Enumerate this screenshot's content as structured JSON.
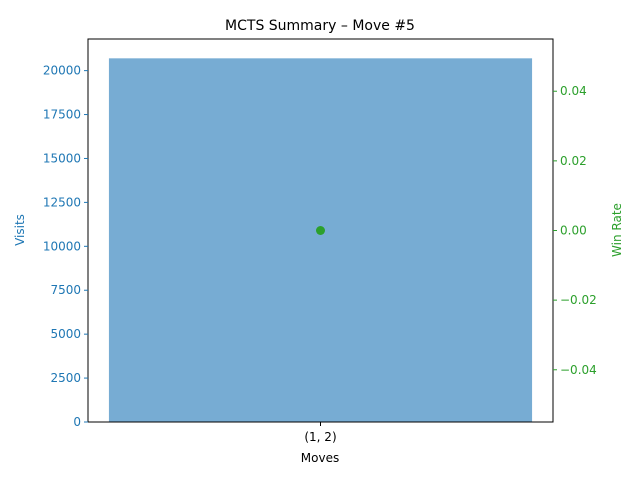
{
  "chart_data": {
    "type": "bar",
    "title": "MCTS Summary – Move #5",
    "xlabel": "Moves",
    "categories": [
      "(1, 2)"
    ],
    "series": [
      {
        "name": "Visits",
        "axis": "left",
        "kind": "bar",
        "values": [
          20700
        ]
      },
      {
        "name": "Win Rate",
        "axis": "right",
        "kind": "point",
        "values": [
          0.0
        ]
      }
    ],
    "y_left": {
      "label": "Visits",
      "lim": [
        0,
        21800
      ],
      "ticks": [
        0,
        2500,
        5000,
        7500,
        10000,
        12500,
        15000,
        17500,
        20000
      ]
    },
    "y_right": {
      "label": "Win Rate",
      "lim": [
        -0.055,
        0.055
      ],
      "ticks": [
        -0.04,
        -0.02,
        0.0,
        0.02,
        0.04
      ],
      "tick_labels": [
        "−0.04",
        "−0.02",
        "0.00",
        "0.02",
        "0.04"
      ]
    },
    "grid": false,
    "legend": "none",
    "colors": {
      "bar": "#77acd3",
      "left_axis": "#1f77b4",
      "point": "#2ca02c",
      "right_axis": "#2ca02c"
    }
  }
}
